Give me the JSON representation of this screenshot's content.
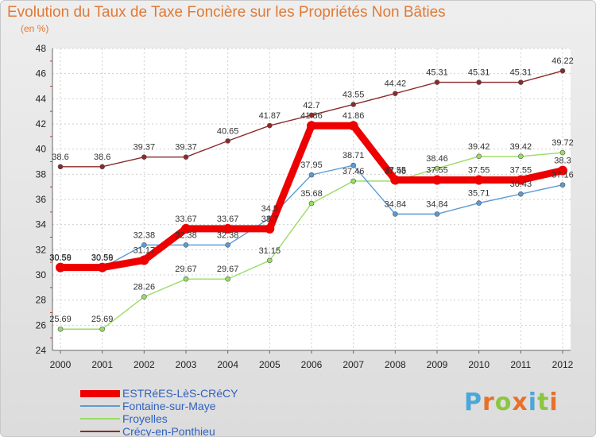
{
  "header": {
    "title": "Evolution du Taux de Taxe Foncière sur les Propriétés Non Bâties",
    "subtitle": "(en %)"
  },
  "logo": {
    "text": "Proxiti",
    "letter_colors": [
      "#4aa7d8",
      "#e8702a",
      "#8cc63f",
      "#e8702a",
      "#4aa7d8",
      "#8cc63f",
      "#e8702a"
    ]
  },
  "chart_data": {
    "type": "line",
    "x": [
      2000,
      2001,
      2002,
      2003,
      2004,
      2005,
      2006,
      2007,
      2008,
      2009,
      2010,
      2011,
      2012
    ],
    "ylim": [
      24,
      48
    ],
    "yticks": [
      24,
      26,
      28,
      30,
      32,
      34,
      36,
      38,
      40,
      42,
      44,
      46,
      48
    ],
    "xlabel": "",
    "ylabel": "",
    "grid": true,
    "legend_position": "bottom-left",
    "series": [
      {
        "name": "ESTRéES-LèS-CRéCY",
        "color": "#ee0000",
        "values": [
          30.59,
          30.59,
          31.17,
          33.67,
          33.67,
          33.67,
          41.86,
          41.86,
          37.55,
          37.55,
          37.55,
          37.55,
          38.3
        ],
        "labels": [
          "30.59",
          "30.59",
          "31.17",
          "33.67",
          "33.67",
          "33.7",
          "41.86",
          "41.86",
          "37.55",
          "37.55",
          "37.55",
          "37.55",
          "38.3"
        ]
      },
      {
        "name": "Fontaine-sur-Maye",
        "color": "#5b9bd5",
        "values": [
          30.56,
          30.56,
          32.38,
          32.38,
          32.38,
          34.5,
          37.95,
          38.71,
          34.84,
          34.84,
          35.71,
          36.43,
          37.16
        ],
        "labels": [
          "30.56",
          "30.56",
          "32.38",
          "32.38",
          "32.38",
          "34.5",
          "37.95",
          "38.71",
          "34.84",
          "34.84",
          "35.71",
          "36.43",
          "37.16"
        ]
      },
      {
        "name": "Froyelles",
        "color": "#99dd66",
        "values": [
          25.69,
          25.69,
          28.26,
          29.67,
          29.67,
          31.15,
          35.68,
          37.46,
          37.46,
          38.46,
          39.42,
          39.42,
          39.72
        ],
        "labels": [
          "25.69",
          "25.69",
          "28.26",
          "29.67",
          "29.67",
          "31.15",
          "35.68",
          "37.46",
          "37.46",
          "38.46",
          "39.42",
          "39.42",
          "39.72"
        ]
      },
      {
        "name": "Crécy-en-Ponthieu",
        "color": "#8b2a2a",
        "values": [
          38.6,
          38.6,
          39.37,
          39.37,
          40.65,
          41.87,
          42.7,
          43.55,
          44.42,
          45.31,
          45.31,
          45.31,
          46.22
        ],
        "labels": [
          "38.6",
          "38.6",
          "39.37",
          "39.37",
          "40.65",
          "41.87",
          "42.7",
          "43.55",
          "44.42",
          "45.31",
          "45.31",
          "45.31",
          "46.22"
        ]
      }
    ]
  }
}
